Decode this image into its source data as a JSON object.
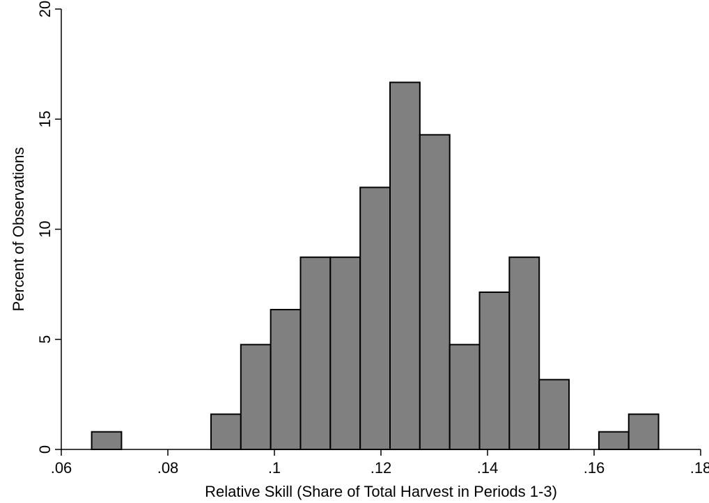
{
  "chart_data": {
    "type": "bar",
    "subtype": "histogram",
    "xlabel": "Relative Skill (Share of Total Harvest in Periods 1-3)",
    "ylabel": "Percent of Observations",
    "xlim": [
      0.06,
      0.18
    ],
    "ylim": [
      0,
      20
    ],
    "xticks": [
      0.06,
      0.08,
      0.1,
      0.12,
      0.14,
      0.16,
      0.18
    ],
    "xtick_labels": [
      ".06",
      ".08",
      ".1",
      ".12",
      ".14",
      ".16",
      ".18"
    ],
    "yticks": [
      0,
      5,
      10,
      15,
      20
    ],
    "ytick_labels": [
      "0",
      "5",
      "10",
      "15",
      "20"
    ],
    "grid": false,
    "bar_color": "#808080",
    "bar_edge_color": "#000000",
    "bin_width": 0.0056,
    "bins": [
      {
        "start": 0.0657,
        "value": 0.8
      },
      {
        "start": 0.0713,
        "value": 0
      },
      {
        "start": 0.0769,
        "value": 0
      },
      {
        "start": 0.0825,
        "value": 0
      },
      {
        "start": 0.0881,
        "value": 1.6
      },
      {
        "start": 0.0937,
        "value": 4.76
      },
      {
        "start": 0.0993,
        "value": 6.35
      },
      {
        "start": 0.1049,
        "value": 8.73
      },
      {
        "start": 0.1105,
        "value": 8.73
      },
      {
        "start": 0.1161,
        "value": 11.9
      },
      {
        "start": 0.1217,
        "value": 16.67
      },
      {
        "start": 0.1273,
        "value": 14.29
      },
      {
        "start": 0.1329,
        "value": 4.76
      },
      {
        "start": 0.1385,
        "value": 7.14
      },
      {
        "start": 0.1441,
        "value": 8.73
      },
      {
        "start": 0.1497,
        "value": 3.17
      },
      {
        "start": 0.1553,
        "value": 0
      },
      {
        "start": 0.1609,
        "value": 0.8
      },
      {
        "start": 0.1665,
        "value": 1.6
      }
    ]
  }
}
